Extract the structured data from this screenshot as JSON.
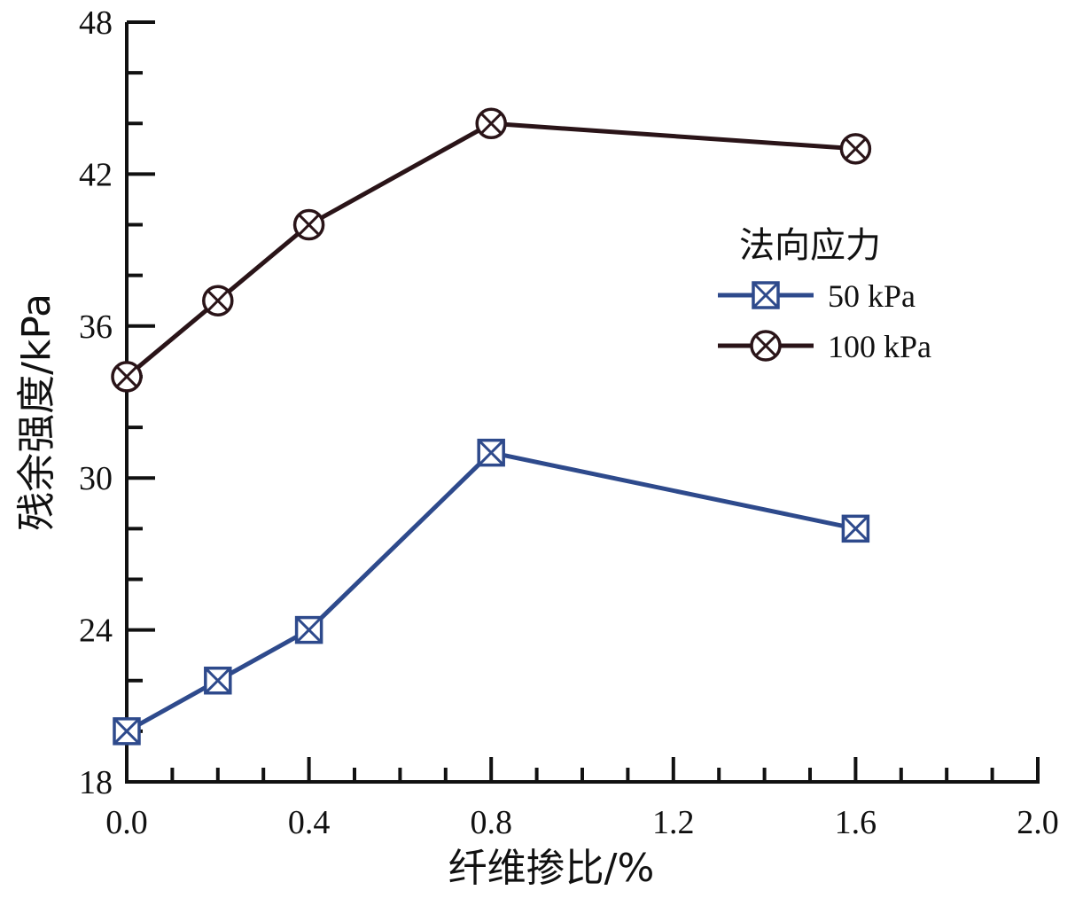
{
  "chart_data": {
    "type": "line",
    "title": "",
    "xlabel": "纤维掺比/%",
    "ylabel": "残余强度/kPa",
    "xlim": [
      0.0,
      2.0
    ],
    "ylim": [
      18,
      48
    ],
    "xticks": [
      "0.0",
      "0.4",
      "0.8",
      "1.2",
      "1.6",
      "2.0"
    ],
    "xtick_values": [
      0.0,
      0.4,
      0.8,
      1.2,
      1.6,
      2.0
    ],
    "yticks": [
      "18",
      "24",
      "30",
      "36",
      "42",
      "48"
    ],
    "ytick_values": [
      18,
      24,
      30,
      36,
      42,
      48
    ],
    "x_minor_step": 0.1,
    "y_minor_step": 2,
    "grid": false,
    "legend": {
      "title": "法向应力",
      "placement": "right"
    },
    "series": [
      {
        "name": "50 kPa",
        "color": "#2e4a8c",
        "marker": "square-x",
        "x": [
          0.0,
          0.2,
          0.4,
          0.8,
          1.6
        ],
        "y": [
          20,
          22,
          24,
          31,
          28
        ]
      },
      {
        "name": "100 kPa",
        "color": "#2a1418",
        "marker": "circle-x",
        "x": [
          0.0,
          0.2,
          0.4,
          0.8,
          1.6
        ],
        "y": [
          34,
          37,
          40,
          44,
          43
        ]
      }
    ]
  }
}
